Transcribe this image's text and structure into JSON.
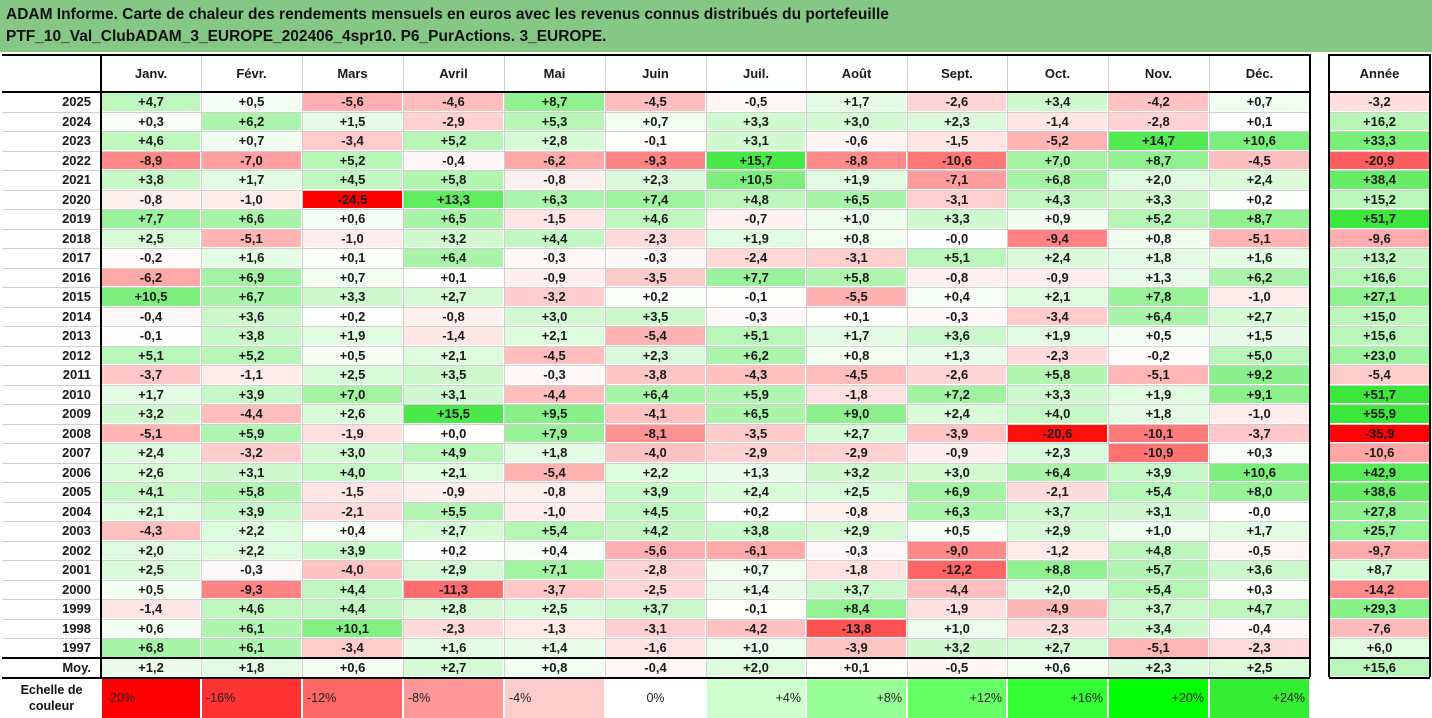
{
  "title_lines": [
    "ADAM Informe. Carte de chaleur des rendements mensuels en euros avec les revenus connus distribués du portefeuille",
    "PTF_10_Val_ClubADAM_3_EUROPE_202406_4spr10. P6_PurActions. 3_EUROPE."
  ],
  "chart_data": {
    "type": "heatmap",
    "columns": [
      "Janv.",
      "Févr.",
      "Mars",
      "Avril",
      "Mai",
      "Juin",
      "Juil.",
      "Août",
      "Sept.",
      "Oct.",
      "Nov.",
      "Déc."
    ],
    "year_column": "Année",
    "rows": [
      {
        "label": "2025",
        "values": [
          4.7,
          0.5,
          -5.6,
          -4.6,
          8.7,
          -4.5,
          -0.5,
          1.7,
          -2.6,
          3.4,
          -4.2,
          0.7
        ],
        "year": -3.2
      },
      {
        "label": "2024",
        "values": [
          0.3,
          6.2,
          1.5,
          -2.9,
          5.3,
          0.7,
          3.3,
          3.0,
          2.3,
          -1.4,
          -2.8,
          0.1
        ],
        "year": 16.2
      },
      {
        "label": "2023",
        "values": [
          4.6,
          0.7,
          -3.4,
          5.2,
          2.8,
          -0.1,
          3.1,
          -0.6,
          -1.5,
          -5.2,
          14.7,
          10.6
        ],
        "year": 33.3
      },
      {
        "label": "2022",
        "values": [
          -8.9,
          -7.0,
          5.2,
          -0.4,
          -6.2,
          -9.3,
          15.7,
          -8.8,
          -10.6,
          7.0,
          8.7,
          -4.5
        ],
        "year": -20.9
      },
      {
        "label": "2021",
        "values": [
          3.8,
          1.7,
          4.5,
          5.8,
          -0.8,
          2.3,
          10.5,
          1.9,
          -7.1,
          6.8,
          2.0,
          2.4
        ],
        "year": 38.4
      },
      {
        "label": "2020",
        "values": [
          -0.8,
          -1.0,
          -24.5,
          13.3,
          6.3,
          7.4,
          4.8,
          6.5,
          -3.1,
          4.3,
          3.3,
          0.2
        ],
        "year": 15.2
      },
      {
        "label": "2019",
        "values": [
          7.7,
          6.6,
          0.6,
          6.5,
          -1.5,
          4.6,
          -0.7,
          1.0,
          3.3,
          0.9,
          5.2,
          8.7
        ],
        "year": 51.7
      },
      {
        "label": "2018",
        "values": [
          2.5,
          -5.1,
          -1.0,
          3.2,
          4.4,
          -2.3,
          1.9,
          0.8,
          -0.0,
          -9.4,
          0.8,
          -5.1
        ],
        "year": -9.6
      },
      {
        "label": "2017",
        "values": [
          -0.2,
          1.6,
          0.1,
          6.4,
          -0.3,
          -0.3,
          -2.4,
          -3.1,
          5.1,
          2.4,
          1.8,
          1.6
        ],
        "year": 13.2
      },
      {
        "label": "2016",
        "values": [
          -6.2,
          6.9,
          0.7,
          0.1,
          -0.9,
          -3.5,
          7.7,
          5.8,
          -0.8,
          -0.9,
          1.3,
          6.2
        ],
        "year": 16.6
      },
      {
        "label": "2015",
        "values": [
          10.5,
          6.7,
          3.3,
          2.7,
          -3.2,
          0.2,
          -0.1,
          -5.5,
          0.4,
          2.1,
          7.8,
          -1.0
        ],
        "year": 27.1
      },
      {
        "label": "2014",
        "values": [
          -0.4,
          3.6,
          0.2,
          -0.8,
          3.0,
          3.5,
          -0.3,
          0.1,
          -0.3,
          -3.4,
          6.4,
          2.7
        ],
        "year": 15.0
      },
      {
        "label": "2013",
        "values": [
          -0.1,
          3.8,
          1.9,
          -1.4,
          2.1,
          -5.4,
          5.1,
          1.7,
          3.6,
          1.9,
          0.5,
          1.5
        ],
        "year": 15.6
      },
      {
        "label": "2012",
        "values": [
          5.1,
          5.2,
          0.5,
          2.1,
          -4.5,
          2.3,
          6.2,
          0.8,
          1.3,
          -2.3,
          -0.2,
          5.0
        ],
        "year": 23.0
      },
      {
        "label": "2011",
        "values": [
          -3.7,
          -1.1,
          2.5,
          3.5,
          -0.3,
          -3.8,
          -4.3,
          -4.5,
          -2.6,
          5.8,
          -5.1,
          9.2
        ],
        "year": -5.4
      },
      {
        "label": "2010",
        "values": [
          1.7,
          3.9,
          7.0,
          3.1,
          -4.4,
          6.4,
          5.9,
          -1.8,
          7.2,
          3.3,
          1.9,
          9.1
        ],
        "year": 51.7
      },
      {
        "label": "2009",
        "values": [
          3.2,
          -4.4,
          2.6,
          15.5,
          9.5,
          -4.1,
          6.5,
          9.0,
          2.4,
          4.0,
          1.8,
          -1.0
        ],
        "year": 55.9
      },
      {
        "label": "2008",
        "values": [
          -5.1,
          5.9,
          -1.9,
          0.0,
          7.9,
          -8.1,
          -3.5,
          2.7,
          -3.9,
          -20.6,
          -10.1,
          -3.7
        ],
        "year": -35.9
      },
      {
        "label": "2007",
        "values": [
          2.4,
          -3.2,
          3.0,
          4.9,
          1.8,
          -4.0,
          -2.9,
          -2.9,
          -0.9,
          2.3,
          -10.9,
          0.3
        ],
        "year": -10.6
      },
      {
        "label": "2006",
        "values": [
          2.6,
          3.1,
          4.0,
          2.1,
          -5.4,
          2.2,
          1.3,
          3.2,
          3.0,
          6.4,
          3.9,
          10.6
        ],
        "year": 42.9
      },
      {
        "label": "2005",
        "values": [
          4.1,
          5.8,
          -1.5,
          -0.9,
          -0.8,
          3.9,
          2.4,
          2.5,
          6.9,
          -2.1,
          5.4,
          8.0
        ],
        "year": 38.6
      },
      {
        "label": "2004",
        "values": [
          2.1,
          3.9,
          -2.1,
          5.5,
          -1.0,
          4.5,
          0.2,
          -0.8,
          6.3,
          3.7,
          3.1,
          -0.0
        ],
        "year": 27.8
      },
      {
        "label": "2003",
        "values": [
          -4.3,
          2.2,
          0.4,
          2.7,
          5.4,
          4.2,
          3.8,
          2.9,
          0.5,
          2.9,
          1.0,
          1.7
        ],
        "year": 25.7
      },
      {
        "label": "2002",
        "values": [
          2.0,
          2.2,
          3.9,
          0.2,
          0.4,
          -5.6,
          -6.1,
          -0.3,
          -9.0,
          -1.2,
          4.8,
          -0.5
        ],
        "year": -9.7
      },
      {
        "label": "2001",
        "values": [
          2.5,
          -0.3,
          -4.0,
          2.9,
          7.1,
          -2.8,
          0.7,
          -1.8,
          -12.2,
          8.8,
          5.7,
          3.6
        ],
        "year": 8.7
      },
      {
        "label": "2000",
        "values": [
          0.5,
          -9.3,
          4.4,
          -11.3,
          -3.7,
          -2.5,
          1.4,
          3.7,
          -4.4,
          2.0,
          5.4,
          0.3
        ],
        "year": -14.2
      },
      {
        "label": "1999",
        "values": [
          -1.4,
          4.6,
          4.4,
          2.8,
          2.5,
          3.7,
          -0.1,
          8.4,
          -1.9,
          -4.9,
          3.7,
          4.7
        ],
        "year": 29.3
      },
      {
        "label": "1998",
        "values": [
          0.6,
          6.1,
          10.1,
          -2.3,
          -1.3,
          -3.1,
          -4.2,
          -13.8,
          1.0,
          -2.3,
          3.4,
          -0.4
        ],
        "year": -7.6
      },
      {
        "label": "1997",
        "values": [
          6.8,
          6.1,
          -3.4,
          1.6,
          1.4,
          -1.6,
          1.0,
          -3.9,
          3.2,
          2.7,
          -5.1,
          -2.3
        ],
        "year": 6.0
      }
    ],
    "average_row": {
      "label": "Moy.",
      "values": [
        1.2,
        1.8,
        0.6,
        2.7,
        0.8,
        -0.4,
        2.0,
        0.1,
        -0.5,
        0.6,
        2.3,
        2.5
      ],
      "year": 15.6
    },
    "color_scale": {
      "label": "Echelle de couleur",
      "steps": [
        {
          "text": "-20%",
          "value": -20,
          "color": "#ff0000"
        },
        {
          "text": "-16%",
          "value": -16,
          "color": "#ff3333"
        },
        {
          "text": "-12%",
          "value": -12,
          "color": "#ff6666"
        },
        {
          "text": "-8%",
          "value": -8,
          "color": "#ff9999"
        },
        {
          "text": "-4%",
          "value": -4,
          "color": "#ffcccc"
        },
        {
          "text": "0%",
          "value": 0,
          "color": "#ffffff"
        },
        {
          "text": "+4%",
          "value": 4,
          "color": "#ccffcc"
        },
        {
          "text": "+8%",
          "value": 8,
          "color": "#99ff99"
        },
        {
          "text": "+12%",
          "value": 12,
          "color": "#66ff66"
        },
        {
          "text": "+16%",
          "value": 16,
          "color": "#33ff33"
        },
        {
          "text": "+20%",
          "value": 20,
          "color": "#00ff00"
        },
        {
          "text": "+24%",
          "value": 24,
          "color": "#33ee33"
        }
      ]
    }
  }
}
